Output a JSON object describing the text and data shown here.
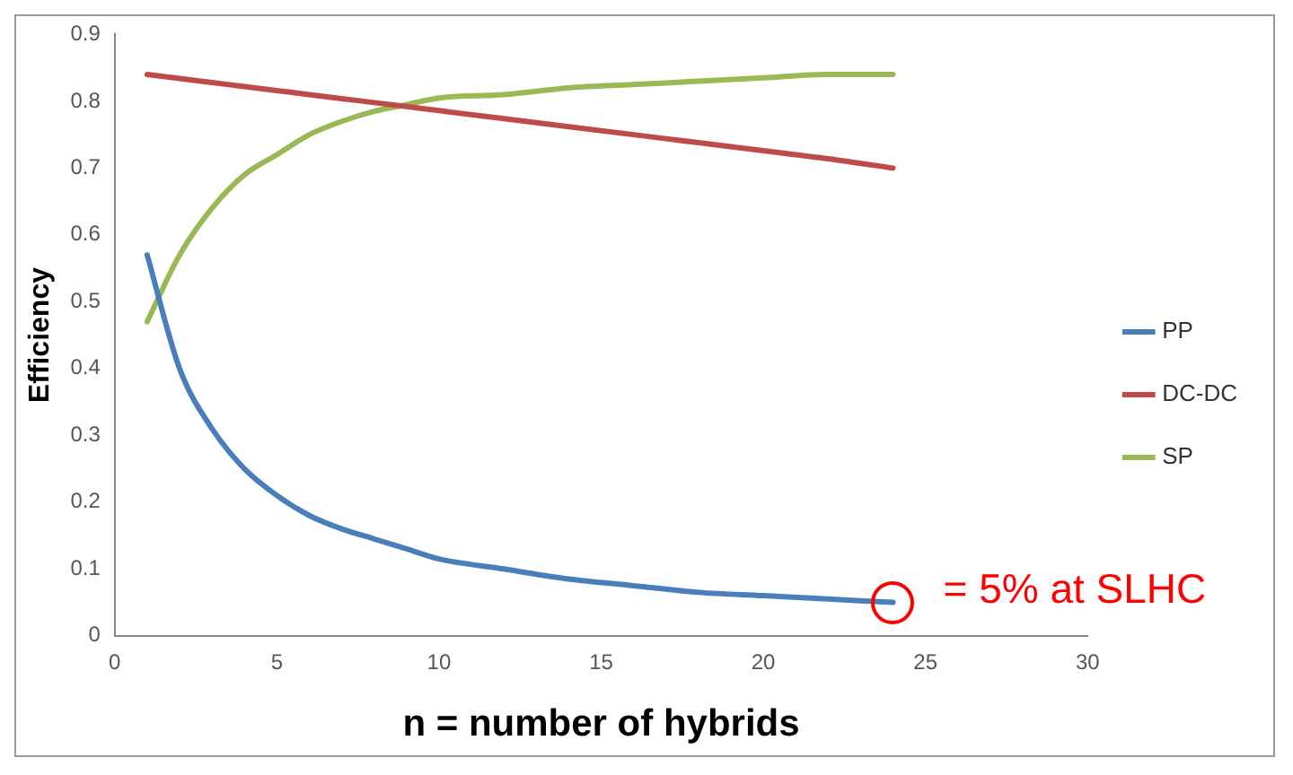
{
  "chart_data": {
    "type": "line",
    "xlabel": "n = number of hybrids",
    "ylabel": "Efficiency",
    "x": [
      1,
      2,
      3,
      4,
      5,
      6,
      7,
      8,
      9,
      10,
      12,
      14,
      16,
      18,
      20,
      22,
      24
    ],
    "series": [
      {
        "name": "PP",
        "color": "#4a7ebb",
        "values": [
          0.57,
          0.4,
          0.31,
          0.25,
          0.21,
          0.18,
          0.16,
          0.145,
          0.13,
          0.115,
          0.1,
          0.085,
          0.075,
          0.065,
          0.06,
          0.055,
          0.05
        ]
      },
      {
        "name": "DC-DC",
        "color": "#be4b48",
        "values": [
          0.84,
          0.834,
          0.828,
          0.822,
          0.816,
          0.81,
          0.804,
          0.798,
          0.792,
          0.786,
          0.774,
          0.762,
          0.75,
          0.738,
          0.726,
          0.714,
          0.7
        ]
      },
      {
        "name": "SP",
        "color": "#98b954",
        "values": [
          0.47,
          0.57,
          0.64,
          0.69,
          0.72,
          0.75,
          0.77,
          0.785,
          0.795,
          0.805,
          0.81,
          0.82,
          0.825,
          0.83,
          0.835,
          0.84,
          0.84
        ]
      }
    ],
    "xlim": [
      0,
      30
    ],
    "xticks": [
      0,
      5,
      10,
      15,
      20,
      25,
      30
    ],
    "ylim": [
      0,
      0.9
    ],
    "yticks": [
      0,
      0.1,
      0.2,
      0.3,
      0.4,
      0.5,
      0.6,
      0.7,
      0.8,
      0.9
    ],
    "grid": false,
    "legend": "right",
    "marker": "none",
    "line_style": "solid",
    "annotations": [
      {
        "text": "= 5% at SLHC",
        "x": 24,
        "y": 0.05
      }
    ]
  }
}
